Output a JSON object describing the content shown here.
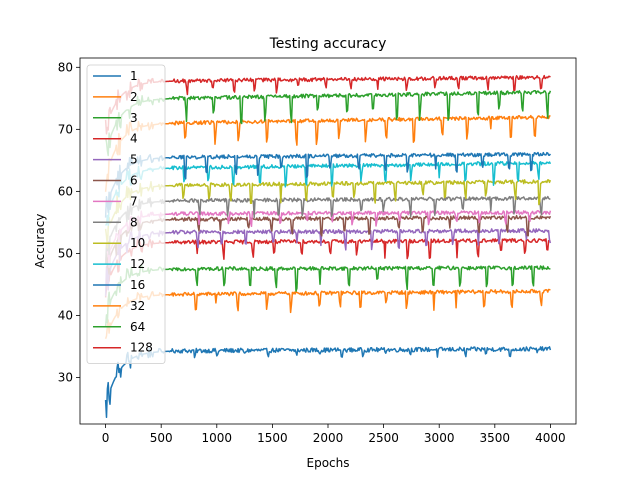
{
  "chart_data": {
    "type": "line",
    "title": "Testing accuracy",
    "xlabel": "Epochs",
    "ylabel": "Accuracy",
    "xlim": [
      -230,
      4230
    ],
    "ylim": [
      22.5,
      81.5
    ],
    "xticks": [
      0,
      500,
      1000,
      1500,
      2000,
      2500,
      3000,
      3500,
      4000
    ],
    "yticks": [
      30,
      40,
      50,
      60,
      70,
      80
    ],
    "grid": false,
    "legend": "upper-left",
    "series": [
      {
        "name": "1",
        "color": "#1f77b4",
        "start": 25.3,
        "level": 34.3,
        "dip": 0.7,
        "noise": 0.35,
        "trend": 0.3
      },
      {
        "name": "2",
        "color": "#ff7f0e",
        "start": 36.0,
        "level": 43.4,
        "dip": 2.0,
        "noise": 0.3,
        "trend": 0.5
      },
      {
        "name": "3",
        "color": "#2ca02c",
        "start": 40.0,
        "level": 47.5,
        "dip": 2.5,
        "noise": 0.3,
        "trend": 0.2
      },
      {
        "name": "4",
        "color": "#d62728",
        "start": 44.0,
        "level": 51.8,
        "dip": 2.0,
        "noise": 0.3,
        "trend": 0.3
      },
      {
        "name": "5",
        "color": "#9467bd",
        "start": 45.0,
        "level": 53.4,
        "dip": 2.0,
        "noise": 0.3,
        "trend": 0.3
      },
      {
        "name": "6",
        "color": "#8c564b",
        "start": 47.0,
        "level": 55.5,
        "dip": 2.0,
        "noise": 0.3,
        "trend": 0.3
      },
      {
        "name": "7",
        "color": "#e377c2",
        "start": 48.0,
        "level": 56.4,
        "dip": 1.5,
        "noise": 0.3,
        "trend": 0.2
      },
      {
        "name": "8",
        "color": "#7f7f7f",
        "start": 50.0,
        "level": 58.5,
        "dip": 2.0,
        "noise": 0.3,
        "trend": 0.4
      },
      {
        "name": "10",
        "color": "#bcbd22",
        "start": 52.0,
        "level": 61.0,
        "dip": 2.5,
        "noise": 0.3,
        "trend": 0.6
      },
      {
        "name": "12",
        "color": "#17becf",
        "start": 55.0,
        "level": 63.8,
        "dip": 2.5,
        "noise": 0.3,
        "trend": 0.8
      },
      {
        "name": "16",
        "color": "#1f77b4",
        "start": 57.0,
        "level": 65.5,
        "dip": 2.5,
        "noise": 0.3,
        "trend": 0.5
      },
      {
        "name": "32",
        "color": "#ff7f0e",
        "start": 62.0,
        "level": 71.0,
        "dip": 3.0,
        "noise": 0.3,
        "trend": 1.0
      },
      {
        "name": "64",
        "color": "#2ca02c",
        "start": 66.0,
        "level": 75.0,
        "dip": 3.0,
        "noise": 0.3,
        "trend": 1.0
      },
      {
        "name": "128",
        "color": "#d62728",
        "start": 70.0,
        "level": 77.8,
        "dip": 1.5,
        "noise": 0.3,
        "trend": 0.6
      }
    ],
    "epochs": 4000
  }
}
